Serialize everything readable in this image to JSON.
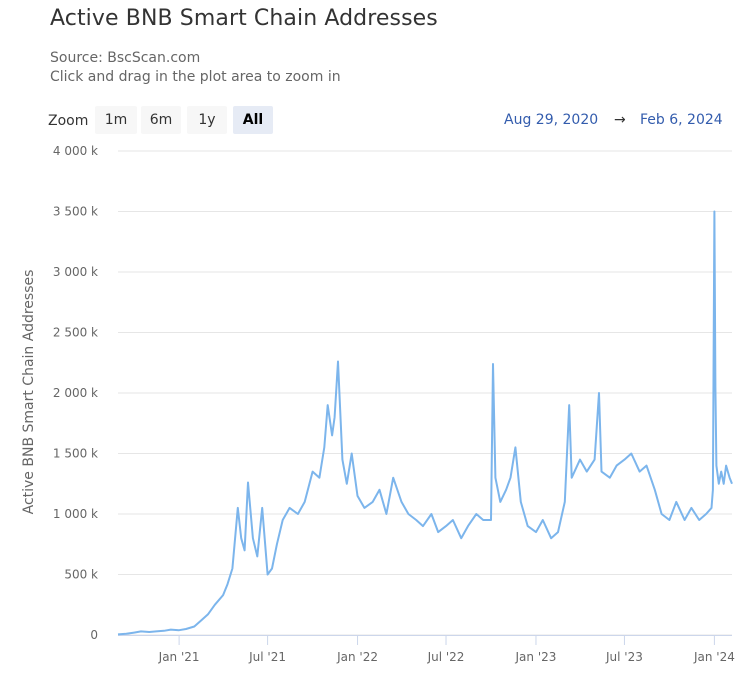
{
  "header": {
    "title": "Active BNB Smart Chain Addresses",
    "source": "Source: BscScan.com",
    "hint": "Click and drag in the plot area to zoom in"
  },
  "zoom": {
    "label": "Zoom",
    "buttons": [
      "1m",
      "6m",
      "1y",
      "All"
    ],
    "active": "All"
  },
  "range": {
    "from": "Aug 29, 2020",
    "arrow": "→",
    "to": "Feb 6, 2024"
  },
  "colors": {
    "series": "#7cb5ec",
    "grid": "#e6e6e6",
    "axis": "#ccd6eb"
  },
  "chart_data": {
    "type": "line",
    "title": "Active BNB Smart Chain Addresses",
    "subtitle": "Source: BscScan.com",
    "xlabel": "",
    "ylabel": "Active BNB Smart Chain Addresses",
    "ylim": [
      0,
      4000000
    ],
    "xlim": [
      "2020-08-29",
      "2024-02-06"
    ],
    "grid": true,
    "legend": "none",
    "y_ticks": [
      {
        "value": 0,
        "label": "0"
      },
      {
        "value": 500000,
        "label": "500 k"
      },
      {
        "value": 1000000,
        "label": "1 000 k"
      },
      {
        "value": 1500000,
        "label": "1 500 k"
      },
      {
        "value": 2000000,
        "label": "2 000 k"
      },
      {
        "value": 2500000,
        "label": "2 500 k"
      },
      {
        "value": 3000000,
        "label": "3 000 k"
      },
      {
        "value": 3500000,
        "label": "3 500 k"
      },
      {
        "value": 4000000,
        "label": "4 000 k"
      }
    ],
    "x_ticks": [
      {
        "date": "2021-01-01",
        "label": "Jan '21"
      },
      {
        "date": "2021-07-01",
        "label": "Jul '21"
      },
      {
        "date": "2022-01-01",
        "label": "Jan '22"
      },
      {
        "date": "2022-07-01",
        "label": "Jul '22"
      },
      {
        "date": "2023-01-01",
        "label": "Jan '23"
      },
      {
        "date": "2023-07-01",
        "label": "Jul '23"
      },
      {
        "date": "2024-01-01",
        "label": "Jan '24"
      }
    ],
    "series": [
      {
        "x": [
          "2020-08-29",
          "2020-09-15",
          "2020-10-01",
          "2020-10-15",
          "2020-11-01",
          "2020-11-15",
          "2020-12-01",
          "2020-12-15",
          "2021-01-01",
          "2021-01-15",
          "2021-02-01",
          "2021-02-15",
          "2021-03-01",
          "2021-03-15",
          "2021-04-01",
          "2021-04-10",
          "2021-04-20",
          "2021-05-01",
          "2021-05-08",
          "2021-05-15",
          "2021-05-22",
          "2021-06-01",
          "2021-06-10",
          "2021-06-20",
          "2021-07-01",
          "2021-07-10",
          "2021-07-20",
          "2021-08-01",
          "2021-08-15",
          "2021-09-01",
          "2021-09-15",
          "2021-10-01",
          "2021-10-15",
          "2021-10-25",
          "2021-11-01",
          "2021-11-10",
          "2021-11-15",
          "2021-11-22",
          "2021-12-01",
          "2021-12-10",
          "2021-12-20",
          "2022-01-01",
          "2022-01-15",
          "2022-02-01",
          "2022-02-15",
          "2022-03-01",
          "2022-03-15",
          "2022-04-01",
          "2022-04-15",
          "2022-05-01",
          "2022-05-15",
          "2022-06-01",
          "2022-06-15",
          "2022-07-01",
          "2022-07-15",
          "2022-08-01",
          "2022-08-15",
          "2022-09-01",
          "2022-09-15",
          "2022-10-01",
          "2022-10-05",
          "2022-10-10",
          "2022-10-20",
          "2022-11-01",
          "2022-11-10",
          "2022-11-20",
          "2022-12-01",
          "2022-12-15",
          "2023-01-01",
          "2023-01-15",
          "2023-02-01",
          "2023-02-15",
          "2023-03-01",
          "2023-03-10",
          "2023-03-15",
          "2023-04-01",
          "2023-04-15",
          "2023-05-01",
          "2023-05-10",
          "2023-05-15",
          "2023-06-01",
          "2023-06-15",
          "2023-07-01",
          "2023-07-15",
          "2023-08-01",
          "2023-08-15",
          "2023-09-01",
          "2023-09-15",
          "2023-10-01",
          "2023-10-15",
          "2023-11-01",
          "2023-11-15",
          "2023-12-01",
          "2023-12-15",
          "2023-12-26",
          "2023-12-29",
          "2024-01-01",
          "2024-01-03",
          "2024-01-05",
          "2024-01-10",
          "2024-01-15",
          "2024-01-20",
          "2024-01-25",
          "2024-02-01",
          "2024-02-06"
        ],
        "values": [
          5000,
          10000,
          20000,
          30000,
          25000,
          30000,
          35000,
          45000,
          40000,
          50000,
          70000,
          120000,
          170000,
          250000,
          330000,
          420000,
          550000,
          1050000,
          800000,
          700000,
          1260000,
          800000,
          650000,
          1050000,
          500000,
          550000,
          750000,
          950000,
          1050000,
          1000000,
          1100000,
          1350000,
          1300000,
          1550000,
          1900000,
          1650000,
          1800000,
          2260000,
          1450000,
          1250000,
          1500000,
          1150000,
          1050000,
          1100000,
          1200000,
          1000000,
          1300000,
          1100000,
          1000000,
          950000,
          900000,
          1000000,
          850000,
          900000,
          950000,
          800000,
          900000,
          1000000,
          950000,
          950000,
          2240000,
          1300000,
          1100000,
          1200000,
          1300000,
          1550000,
          1100000,
          900000,
          850000,
          950000,
          800000,
          850000,
          1100000,
          1900000,
          1300000,
          1450000,
          1350000,
          1450000,
          2000000,
          1350000,
          1300000,
          1400000,
          1450000,
          1500000,
          1350000,
          1400000,
          1200000,
          1000000,
          950000,
          1100000,
          950000,
          1050000,
          950000,
          1000000,
          1050000,
          1200000,
          3500000,
          2050000,
          1400000,
          1250000,
          1350000,
          1250000,
          1400000,
          1300000,
          1250000
        ]
      }
    ]
  }
}
